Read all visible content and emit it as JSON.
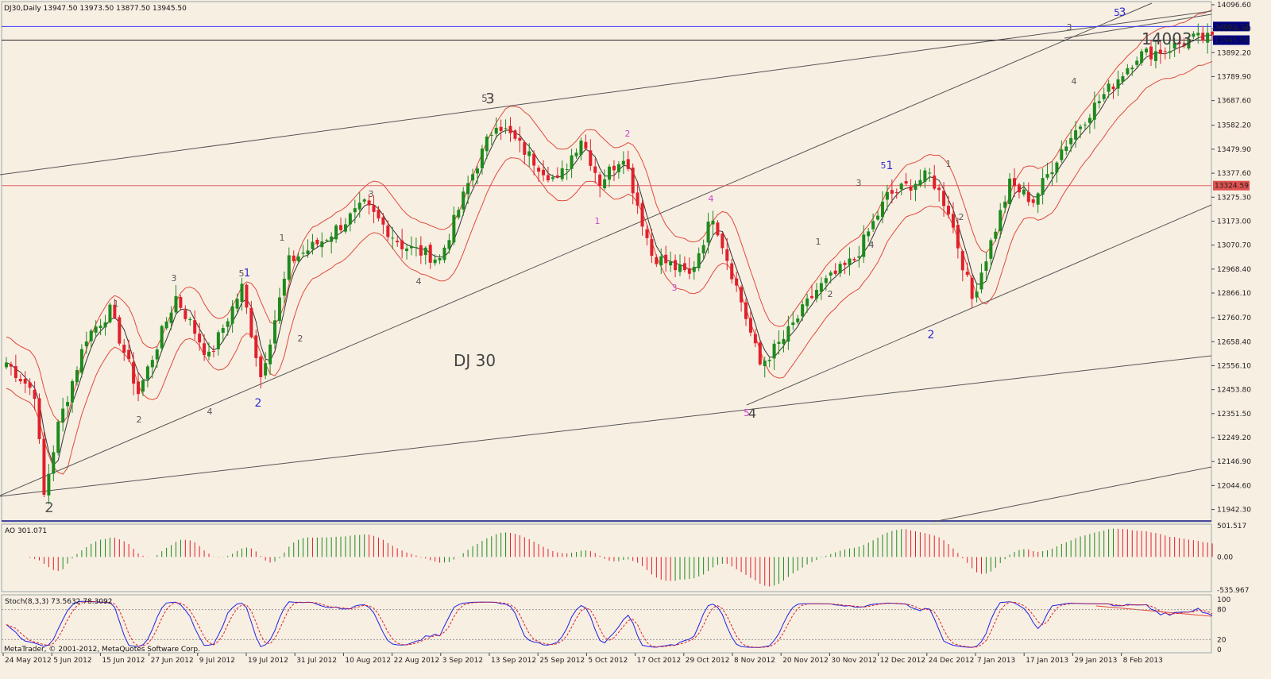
{
  "chart_data": {
    "type": "candlestick",
    "symbol_header": "DJ30,Daily  13947.50 13973.50 13877.50 13945.50",
    "last_close": 13945.5,
    "chart_label": "DJ 30",
    "big_label": "14003",
    "ylim": [
      11890,
      14110
    ],
    "price_ticks": [
      "14096.60",
      "13994.40",
      "13892.20",
      "13789.90",
      "13687.60",
      "13582.20",
      "13479.90",
      "13377.60",
      "13275.30",
      "13173.00",
      "13070.70",
      "12968.40",
      "12866.10",
      "12760.70",
      "12658.40",
      "12556.10",
      "12453.80",
      "12351.50",
      "12249.20",
      "12146.90",
      "12044.60",
      "11942.30"
    ],
    "date_ticks": [
      "24 May 2012",
      "5 Jun 2012",
      "15 Jun 2012",
      "27 Jun 2012",
      "9 Jul 2012",
      "19 Jul 2012",
      "31 Jul 2012",
      "10 Aug 2012",
      "22 Aug 2012",
      "3 Sep 2012",
      "13 Sep 2012",
      "25 Sep 2012",
      "5 Oct 2012",
      "17 Oct 2012",
      "29 Oct 2012",
      "8 Nov 2012",
      "20 Nov 2012",
      "30 Nov 2012",
      "12 Dec 2012",
      "24 Dec 2012",
      "7 Jan 2013",
      "17 Jan 2013",
      "29 Jan 2013",
      "8 Feb 2013"
    ],
    "hlines": [
      {
        "label": "14003.72",
        "price": 14003.72,
        "color": "#3a3aff",
        "tag": "blue"
      },
      {
        "label": "13945.50",
        "price": 13945.5,
        "color": "#222222",
        "tag": "current"
      },
      {
        "label": "13324.59",
        "price": 13324.59,
        "color": "#e06060",
        "tag": "red"
      }
    ],
    "ao": {
      "label": "AO 301.071",
      "ticks": [
        "501.517",
        "0.00",
        "-535.967"
      ],
      "ylim": [
        -560,
        530
      ]
    },
    "stoch": {
      "label": "Stoch(8,3,3) 73.5632 78.3092",
      "ticks": [
        "100",
        "80",
        "20",
        "0"
      ]
    },
    "footer": "MetaTrader, © 2001-2012, MetaQuotes Software Corp.",
    "wave_labels": [
      {
        "t": "2",
        "x": 62,
        "y": 645,
        "c": "#555",
        "s": 18
      },
      {
        "t": "1",
        "x": 146,
        "y": 386,
        "c": "#555",
        "s": 11
      },
      {
        "t": "2",
        "x": 175,
        "y": 532,
        "c": "#555",
        "s": 11
      },
      {
        "t": "3",
        "x": 219,
        "y": 354,
        "c": "#555",
        "s": 11
      },
      {
        "t": "4",
        "x": 264,
        "y": 522,
        "c": "#555",
        "s": 11
      },
      {
        "t": "5",
        "x": 304,
        "y": 348,
        "c": "#555",
        "s": 11
      },
      {
        "t": "1",
        "x": 311,
        "y": 348,
        "c": "#2b2bd0",
        "s": 13
      },
      {
        "t": "2",
        "x": 325,
        "y": 512,
        "c": "#2b2bd0",
        "s": 14
      },
      {
        "t": "1",
        "x": 355,
        "y": 303,
        "c": "#555",
        "s": 11
      },
      {
        "t": "2",
        "x": 378,
        "y": 430,
        "c": "#555",
        "s": 11
      },
      {
        "t": "3",
        "x": 467,
        "y": 248,
        "c": "#555",
        "s": 11
      },
      {
        "t": "4",
        "x": 527,
        "y": 358,
        "c": "#555",
        "s": 11
      },
      {
        "t": "5",
        "x": 610,
        "y": 128,
        "c": "#555",
        "s": 12
      },
      {
        "t": "3",
        "x": 617,
        "y": 130,
        "c": "#444",
        "s": 18
      },
      {
        "t": "2",
        "x": 790,
        "y": 172,
        "c": "#cc44cc",
        "s": 11
      },
      {
        "t": "1",
        "x": 752,
        "y": 282,
        "c": "#cc44cc",
        "s": 11
      },
      {
        "t": "4",
        "x": 895,
        "y": 254,
        "c": "#cc44cc",
        "s": 11
      },
      {
        "t": "3",
        "x": 849,
        "y": 366,
        "c": "#cc44cc",
        "s": 11
      },
      {
        "t": "5",
        "x": 940,
        "y": 524,
        "c": "#cc44cc",
        "s": 12
      },
      {
        "t": "4",
        "x": 947,
        "y": 526,
        "c": "#444",
        "s": 16
      },
      {
        "t": "1",
        "x": 1030,
        "y": 308,
        "c": "#555",
        "s": 11
      },
      {
        "t": "2",
        "x": 1045,
        "y": 374,
        "c": "#555",
        "s": 11
      },
      {
        "t": "3",
        "x": 1081,
        "y": 234,
        "c": "#555",
        "s": 11
      },
      {
        "t": "4",
        "x": 1097,
        "y": 312,
        "c": "#555",
        "s": 11
      },
      {
        "t": "5",
        "x": 1112,
        "y": 212,
        "c": "#2b2bd0",
        "s": 11
      },
      {
        "t": "1",
        "x": 1120,
        "y": 213,
        "c": "#2b2bd0",
        "s": 14
      },
      {
        "t": "2",
        "x": 1172,
        "y": 426,
        "c": "#2b2bd0",
        "s": 14
      },
      {
        "t": "1",
        "x": 1194,
        "y": 210,
        "c": "#555",
        "s": 11
      },
      {
        "t": "2",
        "x": 1210,
        "y": 277,
        "c": "#555",
        "s": 11
      },
      {
        "t": "3",
        "x": 1346,
        "y": 38,
        "c": "#555",
        "s": 11
      },
      {
        "t": "4",
        "x": 1352,
        "y": 106,
        "c": "#555",
        "s": 11
      },
      {
        "t": "5",
        "x": 1406,
        "y": 20,
        "c": "#2b2bd0",
        "s": 12
      },
      {
        "t": "3",
        "x": 1413,
        "y": 20,
        "c": "#2b2bd0",
        "s": 14
      }
    ]
  }
}
